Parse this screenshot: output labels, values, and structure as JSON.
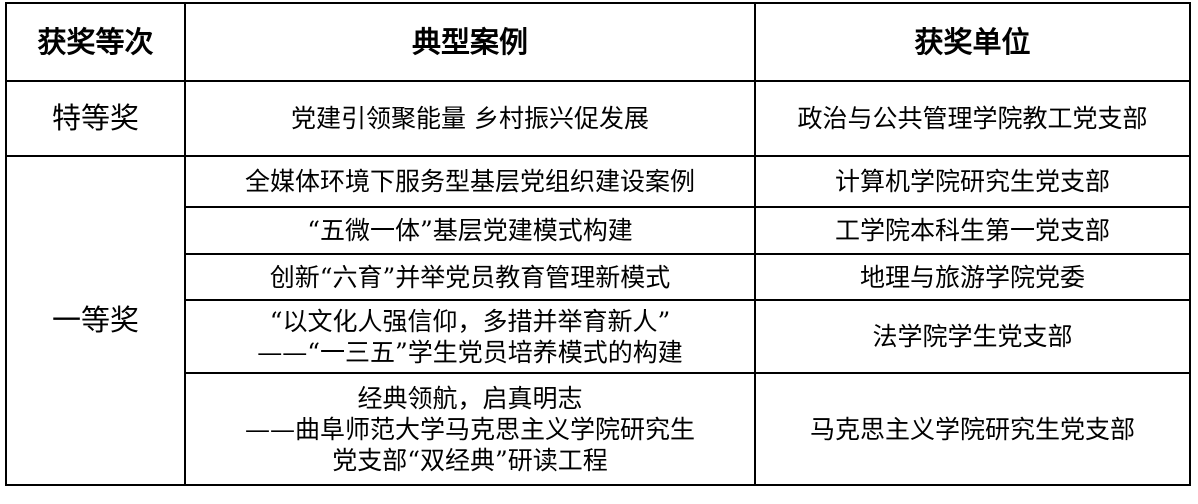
{
  "headers": [
    "获奖等次",
    "典型案例",
    "获奖单位"
  ],
  "rows": [
    {
      "level": "特等奖",
      "case_lines": [
        "党建引领聚能量 乡村振兴促发展"
      ],
      "unit": "政治与公共管理学院教工党支部"
    },
    {
      "level": "一等奖",
      "case_lines": [
        "全媒体环境下服务型基层党组织建设案例"
      ],
      "unit": "计算机学院研究生党支部"
    },
    {
      "case_lines": [
        "“五微一体”基层党建模式构建"
      ],
      "unit": "工学院本科生第一党支部"
    },
    {
      "case_lines": [
        "创新“六育”并举党员教育管理新模式"
      ],
      "unit": "地理与旅游学院党委"
    },
    {
      "case_lines": [
        "“以文化人强信仰，多措并举育新人”",
        "——“一三五”学生党员培养模式的构建"
      ],
      "unit": "法学院学生党支部"
    },
    {
      "case_lines": [
        "经典领航，启真明志",
        "——曲阜师范大学马克思主义学院研究生",
        "党支部“双经典”研读工程"
      ],
      "unit": "马克思主义学院研究生党支部"
    }
  ]
}
